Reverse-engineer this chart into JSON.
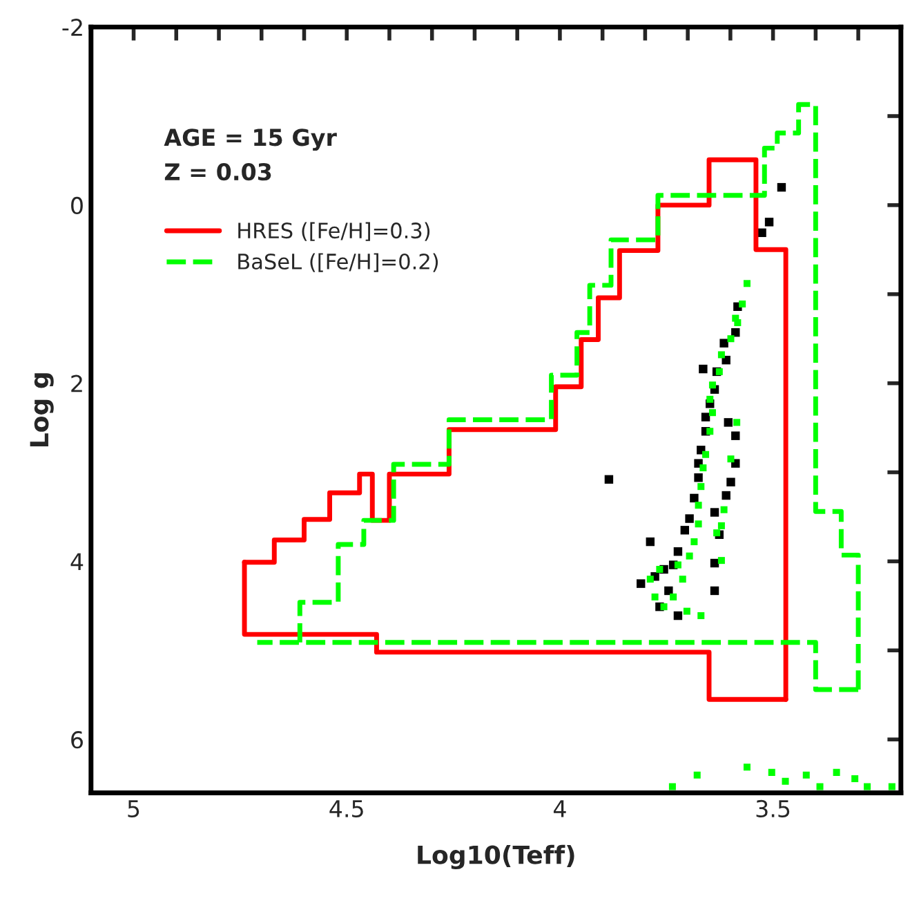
{
  "chart_data": {
    "type": "line",
    "xlabel": "Log10(Teff)",
    "ylabel": "Log g",
    "annotations": [
      "AGE = 15 Gyr",
      "Z = 0.03"
    ],
    "xlim": [
      5.1,
      3.2
    ],
    "ylim": [
      6.6,
      -2
    ],
    "xticks": [
      {
        "value": 5.0,
        "label": "5"
      },
      {
        "value": 4.9,
        "label": null
      },
      {
        "value": 4.8,
        "label": null
      },
      {
        "value": 4.7,
        "label": null
      },
      {
        "value": 4.6,
        "label": null
      },
      {
        "value": 4.5,
        "label": "4.5"
      },
      {
        "value": 4.4,
        "label": null
      },
      {
        "value": 4.3,
        "label": null
      },
      {
        "value": 4.2,
        "label": null
      },
      {
        "value": 4.1,
        "label": null
      },
      {
        "value": 4.0,
        "label": "4"
      },
      {
        "value": 3.9,
        "label": null
      },
      {
        "value": 3.8,
        "label": null
      },
      {
        "value": 3.7,
        "label": null
      },
      {
        "value": 3.6,
        "label": null
      },
      {
        "value": 3.5,
        "label": "3.5"
      },
      {
        "value": 3.4,
        "label": null
      },
      {
        "value": 3.3,
        "label": null
      }
    ],
    "yticks": [
      -2,
      {
        "value": -1,
        "label": null
      },
      0,
      {
        "value": 1,
        "label": null
      },
      2,
      {
        "value": 3,
        "label": null
      },
      4,
      {
        "value": 5,
        "label": null
      },
      6
    ],
    "grid": false,
    "legend": "top left",
    "series": [
      {
        "name": "HRES ([Fe/H]=0.3)",
        "color": "#ff0000",
        "line_style": "solid",
        "marker": "none",
        "x": [
          4.74,
          4.67,
          4.67,
          4.6,
          4.6,
          4.54,
          4.54,
          4.47,
          4.47,
          4.44,
          4.44,
          4.4,
          4.4,
          4.26,
          4.26,
          4.01,
          4.01,
          3.95,
          3.95,
          3.91,
          3.91,
          3.86,
          3.86,
          3.77,
          3.77,
          3.65,
          3.65,
          3.54,
          3.54,
          3.47,
          3.47
        ],
        "values": [
          4.01,
          4.01,
          3.76,
          3.76,
          3.53,
          3.53,
          3.23,
          3.23,
          3.02,
          3.02,
          3.54,
          3.54,
          3.02,
          3.02,
          2.52,
          2.52,
          2.04,
          2.04,
          1.51,
          1.51,
          1.04,
          1.04,
          0.51,
          0.51,
          0,
          0,
          -0.51,
          -0.51,
          0.5,
          0.5,
          5.55
        ]
      },
      {
        "color": "#ff0000",
        "line_style": "solid",
        "marker": "none",
        "x": [
          4.74,
          4.74,
          4.43,
          4.43,
          3.65,
          3.65,
          3.47
        ],
        "values": [
          4.01,
          4.82,
          4.82,
          5.02,
          5.02,
          5.55,
          5.55
        ]
      },
      {
        "name": "BaSeL ([Fe/H]=0.2)",
        "color": "#00ff00",
        "line_style": "dashed",
        "marker": "none",
        "x": [
          3.3,
          3.3,
          3.34,
          3.34,
          3.4,
          3.4,
          3.44,
          3.44,
          3.49,
          3.49,
          3.52,
          3.52,
          3.77,
          3.77,
          3.88,
          3.88,
          3.93,
          3.93,
          3.96,
          3.96,
          4.02,
          4.02,
          4.26,
          4.26,
          4.39,
          4.39,
          4.46,
          4.46,
          4.52,
          4.52,
          4.61,
          4.61
        ],
        "values": [
          5.44,
          3.93,
          3.93,
          3.44,
          3.44,
          -1.13,
          -1.13,
          -0.81,
          -0.81,
          -0.64,
          -0.64,
          -0.11,
          -0.11,
          0.39,
          0.39,
          0.9,
          0.9,
          1.43,
          1.43,
          1.91,
          1.91,
          2.41,
          2.41,
          2.91,
          2.91,
          3.54,
          3.54,
          3.81,
          3.81,
          4.46,
          4.46,
          4.91
        ]
      },
      {
        "color": "#00ff00",
        "line_style": "dashed",
        "marker": "none",
        "x": [
          3.3,
          3.4,
          3.4,
          4.71
        ],
        "values": [
          5.44,
          5.44,
          4.91,
          4.91
        ]
      },
      {
        "type": "scatter",
        "color": "#000000",
        "marker": "square",
        "x": [
          3.583,
          3.588,
          3.615,
          3.61,
          3.632,
          3.637,
          3.648,
          3.658,
          3.658,
          3.669,
          3.675,
          3.675,
          3.685,
          3.696,
          3.707,
          3.723,
          3.734,
          3.756,
          3.777,
          3.81,
          3.745,
          3.766,
          3.723,
          3.605,
          3.588,
          3.588,
          3.599,
          3.61,
          3.637,
          3.626,
          3.637,
          3.637,
          3.788,
          3.885,
          3.664,
          3.48,
          3.509,
          3.526
        ],
        "values": [
          1.14,
          1.43,
          1.55,
          1.74,
          1.87,
          2.07,
          2.23,
          2.38,
          2.54,
          2.75,
          2.9,
          3.06,
          3.29,
          3.52,
          3.65,
          3.89,
          4.04,
          4.09,
          4.17,
          4.25,
          4.33,
          4.51,
          4.61,
          2.44,
          2.59,
          2.9,
          3.11,
          3.26,
          3.45,
          3.7,
          4.02,
          4.33,
          3.78,
          3.08,
          1.84,
          -0.2,
          0.19,
          0.31
        ]
      },
      {
        "type": "scatter",
        "color": "#00ff00",
        "marker": "square",
        "x": [
          3.561,
          3.572,
          3.588,
          3.599,
          3.621,
          3.626,
          3.642,
          3.648,
          3.642,
          3.648,
          3.658,
          3.664,
          3.669,
          3.675,
          3.675,
          3.685,
          3.696,
          3.723,
          3.712,
          3.734,
          3.766,
          3.788,
          3.777,
          3.756,
          3.702,
          3.669,
          3.615,
          3.621,
          3.621,
          3.632,
          3.599,
          3.585,
          3.583,
          3.678,
          3.561,
          3.503,
          3.471,
          3.422,
          3.39,
          3.351,
          3.308,
          3.279,
          3.736,
          3.221
        ],
        "values": [
          0.88,
          1.11,
          1.27,
          1.5,
          1.68,
          1.87,
          2.02,
          2.18,
          2.33,
          2.54,
          2.8,
          2.95,
          3.16,
          3.37,
          3.58,
          3.78,
          3.94,
          4.04,
          4.2,
          4.4,
          4.09,
          4.2,
          4.4,
          4.51,
          4.56,
          4.61,
          3.42,
          3.6,
          3.99,
          3.68,
          2.85,
          2.44,
          1.32,
          6.4,
          6.31,
          6.37,
          6.47,
          6.4,
          6.53,
          6.37,
          6.44,
          6.53,
          6.53,
          6.53
        ]
      }
    ]
  }
}
